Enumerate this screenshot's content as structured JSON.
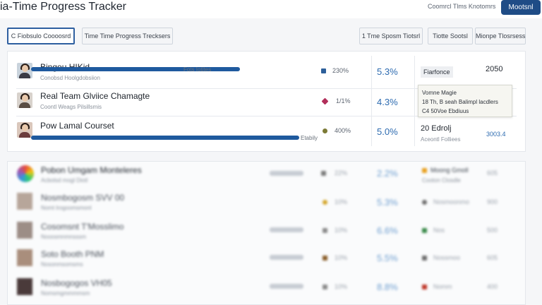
{
  "app": {
    "title": "ia-Time Progress Tracker",
    "top_link": "Coomrcl Tlms Knotomrs",
    "top_button": "Mootsnl"
  },
  "tabs": [
    {
      "label": "C  Fiobsulo Coooosrd",
      "active": true
    },
    {
      "label": "Time Time Progress Trecksers",
      "active": false
    },
    {
      "label": "1 Tme Sposm Tiotsrl",
      "active": false
    },
    {
      "label": "Tiotte Sootsl",
      "active": false
    },
    {
      "label": "Mionpe Tlosrsess",
      "active": false
    }
  ],
  "rows": [
    {
      "name": "Bingou HIKid",
      "sub": "Conobsd Hoolgdobsiion",
      "bar_label": "Fots Iotites",
      "progress": 0.74,
      "count": "230%",
      "percent": "5.3%",
      "icon_color": "#2d5f9a",
      "badge": "Fiarfonce",
      "value": "2050"
    },
    {
      "name": "Real Team Glviice Chamagte",
      "sub": "Coontl Weags Pilsillsmis",
      "bar_label": "",
      "progress": 0,
      "count": "1/1%",
      "percent": "4.3%",
      "icon_color": "#b12e5a"
    },
    {
      "name": "Pow Lamal Courset",
      "sub": "",
      "bar_label": "Etabily",
      "progress": 0.95,
      "count": "400%",
      "percent": "5.0%",
      "icon_color": "#7c7a36",
      "value": "20 Edrolj",
      "sub_value": "Aceontl Folliees",
      "extra": "3003.4"
    }
  ],
  "tooltip": {
    "lines": [
      "Vomne Magie",
      "18 Th, B seah Balimpl lacdlers",
      "C4 50Voe Ebdiuus"
    ]
  },
  "blurred_rows": [
    {
      "name": "Pobon Umgam Monteleres",
      "sub": "Acbolsd mogl Diotl",
      "count": "22%",
      "percent": "2.2%",
      "icon_color": "#e8a020",
      "col4": "Moong Gmoll",
      "col4_sub": "Cooton Closdle",
      "col5": "605"
    },
    {
      "name": "Nosmbogosm SVV 00",
      "sub": "Nomt lrogoomsmonl",
      "count": "10%",
      "percent": "5.3%",
      "icon_color": "#d4a62a",
      "col4": "Nosmoonmo",
      "col4_sub": "",
      "col5": "900"
    },
    {
      "name": "Cosomsnt T'Mosslimo",
      "sub": "Nooosmnmnsssm",
      "count": "10%",
      "percent": "6.6%",
      "icon_color": "#3a8a4a",
      "col4": "Nos",
      "col4_sub": "",
      "col5": "500"
    },
    {
      "name": "Soto Booth PNM",
      "sub": "Nosonmsomsms",
      "count": "10%",
      "percent": "5.5%",
      "icon_color": "#8a5e2a",
      "col4": "Nossmoo",
      "col4_sub": "",
      "col5": "605"
    },
    {
      "name": "Nosbogogos VH05",
      "sub": "Nomsmgmmmmsm",
      "count": "10%",
      "percent": "8.8%",
      "icon_color": "#c0392b",
      "col4": "Nomm",
      "col4_sub": "",
      "col5": "400"
    }
  ]
}
